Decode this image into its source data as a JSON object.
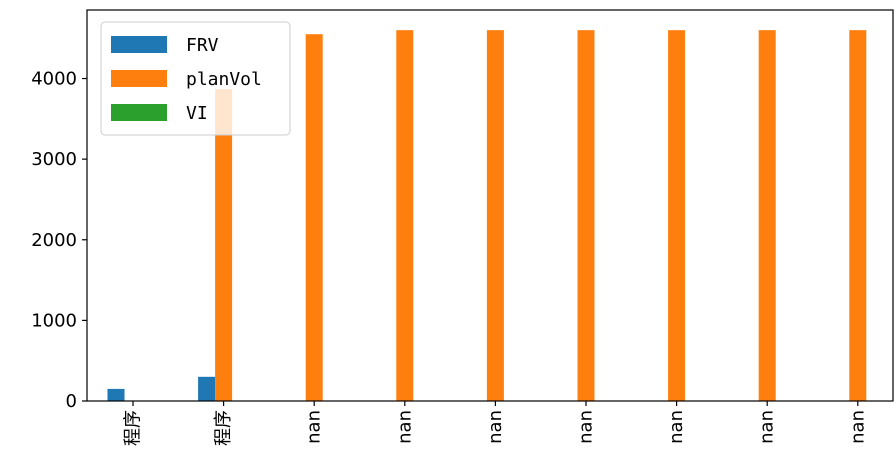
{
  "chart_data": {
    "type": "bar",
    "title": "",
    "xlabel": "",
    "ylabel": "",
    "categories": [
      "程序",
      "程序",
      "nan",
      "nan",
      "nan",
      "nan",
      "nan",
      "nan",
      "nan"
    ],
    "series": [
      {
        "name": "FRV",
        "color": "#1f77b4",
        "values": [
          150,
          300,
          0,
          0,
          0,
          0,
          0,
          0,
          0
        ]
      },
      {
        "name": "planVol",
        "color": "#ff7f0e",
        "values": [
          0,
          3870,
          4550,
          4600,
          4600,
          4600,
          4600,
          4600,
          4600
        ]
      },
      {
        "name": "VI",
        "color": "#2ca02c",
        "values": [
          0,
          0,
          0,
          0,
          0,
          0,
          0,
          0,
          0
        ]
      }
    ],
    "ylim": [
      0,
      4850
    ],
    "yticks": [
      0,
      1000,
      2000,
      3000,
      4000
    ],
    "grid": false,
    "legend_position": "top-left"
  }
}
